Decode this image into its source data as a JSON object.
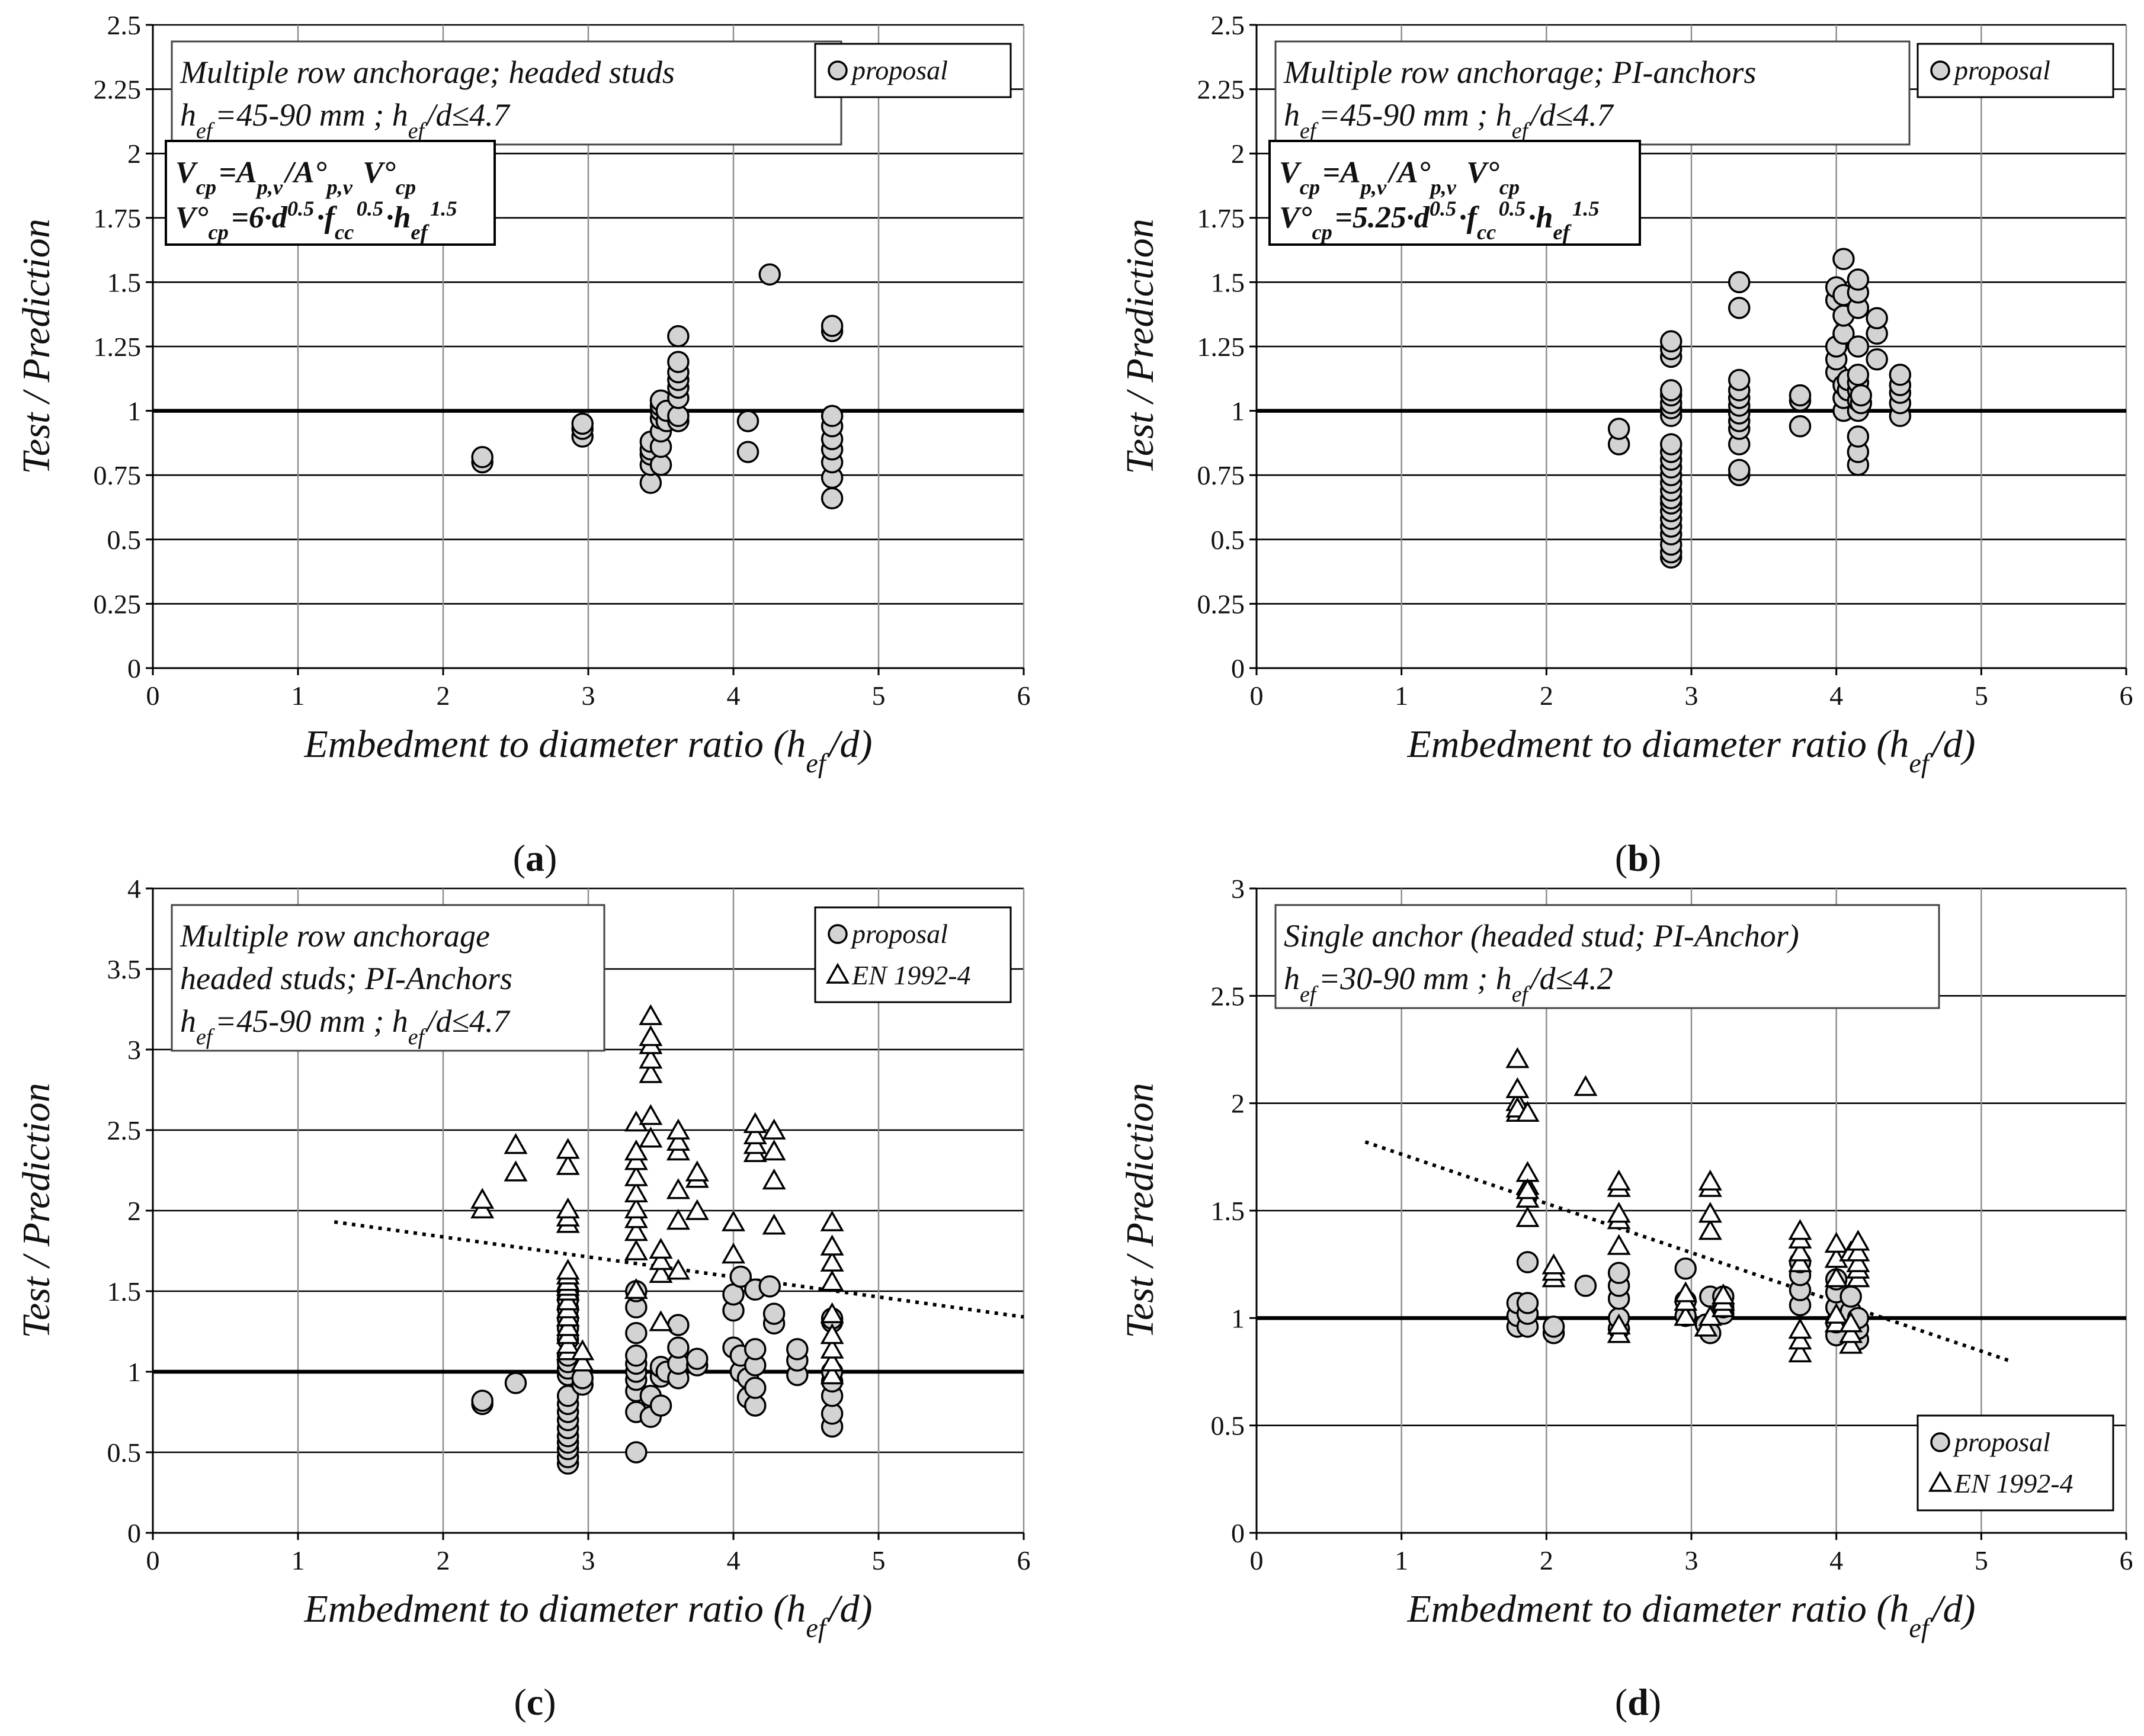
{
  "chart_data": [
    {
      "id": "a",
      "type": "scatter",
      "panel_label": "a",
      "xlabel": "Embedment to diameter ratio (h_ef/d)",
      "ylabel": "Test / Prediction",
      "xlim": [
        0,
        6
      ],
      "xticks": [
        0,
        1,
        2,
        3,
        4,
        5,
        6
      ],
      "ylim": [
        0,
        2.5
      ],
      "yticks": [
        0,
        0.25,
        0.5,
        0.75,
        1,
        1.25,
        1.5,
        1.75,
        2,
        2.25,
        2.5
      ],
      "ytick_labels": [
        "0",
        "0.25",
        "0.5",
        "0.75",
        "1",
        "1.25",
        "1.5",
        "1.75",
        "2",
        "2.25",
        "2.5"
      ],
      "grid": true,
      "reference_line": 1,
      "annotation": {
        "line1": "Multiple row anchorage; headed studs",
        "line2": "h_ef=45-90 mm ; h_ef/d≤4.7"
      },
      "formula": {
        "line1": "V_cp=A_p,v/A°_p,v V°_cp",
        "line2": "V°_cp=6·d^0.5·f_cc^0.5·h_ef^1.5"
      },
      "legend": [
        "proposal"
      ],
      "legend_position": "top-right",
      "series": [
        {
          "name": "proposal",
          "marker": "circle",
          "x": [
            2.27,
            2.27,
            2.96,
            2.96,
            2.96,
            3.43,
            3.43,
            3.43,
            3.43,
            3.43,
            3.5,
            3.5,
            3.5,
            3.5,
            3.5,
            3.5,
            3.5,
            3.54,
            3.54,
            3.62,
            3.62,
            3.62,
            3.62,
            3.62,
            3.62,
            3.62,
            3.62,
            4.1,
            4.1,
            4.25,
            4.68,
            4.68,
            4.68,
            4.68,
            4.68,
            4.68,
            4.68,
            4.68,
            4.68
          ],
          "y": [
            0.8,
            0.82,
            0.9,
            0.93,
            0.95,
            0.72,
            0.79,
            0.83,
            0.85,
            0.88,
            0.79,
            0.86,
            0.92,
            0.97,
            1.0,
            1.02,
            1.04,
            0.96,
            1.0,
            0.96,
            0.98,
            1.05,
            1.09,
            1.12,
            1.15,
            1.19,
            1.29,
            0.84,
            0.96,
            1.53,
            0.66,
            0.74,
            0.8,
            0.85,
            0.89,
            0.94,
            0.98,
            1.31,
            1.33
          ]
        }
      ]
    },
    {
      "id": "b",
      "type": "scatter",
      "panel_label": "b",
      "xlabel": "Embedment to diameter ratio (h_ef/d)",
      "ylabel": "Test / Prediction",
      "xlim": [
        0,
        6
      ],
      "xticks": [
        0,
        1,
        2,
        3,
        4,
        5,
        6
      ],
      "ylim": [
        0,
        2.5
      ],
      "yticks": [
        0,
        0.25,
        0.5,
        0.75,
        1,
        1.25,
        1.5,
        1.75,
        2,
        2.25,
        2.5
      ],
      "ytick_labels": [
        "0",
        "0.25",
        "0.5",
        "0.75",
        "1",
        "1.25",
        "1.5",
        "1.75",
        "2",
        "2.25",
        "2.5"
      ],
      "grid": true,
      "reference_line": 1,
      "annotation": {
        "line1": "Multiple row anchorage; PI-anchors",
        "line2": "h_ef=45-90 mm ; h_ef/d≤4.7"
      },
      "formula": {
        "line1": "V_cp=A_p,v/A°_p,v V°_cp",
        "line2": "V°_cp=5.25·d^0.5·f_cc^0.5·h_ef^1.5"
      },
      "legend": [
        "proposal"
      ],
      "legend_position": "top-right",
      "series": [
        {
          "name": "proposal",
          "marker": "circle",
          "x": [
            2.5,
            2.5,
            2.86,
            2.86,
            2.86,
            2.86,
            2.86,
            2.86,
            2.86,
            2.86,
            2.86,
            2.86,
            2.86,
            2.86,
            2.86,
            2.86,
            2.86,
            2.86,
            2.86,
            2.86,
            2.86,
            2.86,
            2.86,
            2.86,
            2.86,
            2.86,
            3.33,
            3.33,
            3.33,
            3.33,
            3.33,
            3.33,
            3.33,
            3.33,
            3.33,
            3.33,
            3.33,
            3.33,
            3.75,
            3.75,
            3.75,
            4.0,
            4.0,
            4.0,
            4.0,
            4.0,
            4.05,
            4.05,
            4.05,
            4.05,
            4.05,
            4.05,
            4.05,
            4.08,
            4.08,
            4.15,
            4.15,
            4.15,
            4.15,
            4.15,
            4.15,
            4.15,
            4.15,
            4.15,
            4.15,
            4.15,
            4.15,
            4.17,
            4.17,
            4.28,
            4.28,
            4.28,
            4.44,
            4.44,
            4.44,
            4.44,
            4.44
          ],
          "y": [
            0.87,
            0.93,
            0.43,
            0.45,
            0.48,
            0.52,
            0.55,
            0.58,
            0.61,
            0.64,
            0.66,
            0.69,
            0.72,
            0.75,
            0.78,
            0.81,
            0.84,
            0.87,
            0.98,
            1.01,
            1.03,
            1.06,
            1.08,
            1.21,
            1.24,
            1.27,
            0.75,
            0.77,
            0.87,
            0.93,
            0.96,
            0.99,
            1.02,
            1.05,
            1.08,
            1.12,
            1.4,
            1.5,
            0.94,
            1.04,
            1.06,
            1.15,
            1.2,
            1.25,
            1.43,
            1.48,
            1.0,
            1.05,
            1.1,
            1.3,
            1.37,
            1.45,
            1.59,
            1.08,
            1.12,
            0.79,
            0.84,
            0.9,
            1.0,
            1.04,
            1.08,
            1.11,
            1.14,
            1.25,
            1.4,
            1.46,
            1.51,
            1.03,
            1.06,
            1.2,
            1.3,
            1.36,
            0.98,
            1.03,
            1.07,
            1.1,
            1.14
          ]
        }
      ]
    },
    {
      "id": "c",
      "type": "scatter",
      "panel_label": "c",
      "xlabel": "Embedment to diameter ratio (h_ef/d)",
      "ylabel": "Test / Prediction",
      "xlim": [
        0,
        6
      ],
      "xticks": [
        0,
        1,
        2,
        3,
        4,
        5,
        6
      ],
      "ylim": [
        0,
        4
      ],
      "yticks": [
        0,
        0.5,
        1,
        1.5,
        2,
        2.5,
        3,
        3.5,
        4
      ],
      "ytick_labels": [
        "0",
        "0.5",
        "1",
        "1.5",
        "2",
        "2.5",
        "3",
        "3.5",
        "4"
      ],
      "grid": true,
      "reference_line": 1,
      "annotation": {
        "line1": "Multiple row anchorage",
        "line2": "headed studs; PI-Anchors",
        "line3": "h_ef=45-90 mm ; h_ef/d≤4.7"
      },
      "legend": [
        "proposal",
        "EN 1992-4"
      ],
      "legend_position": "top-right",
      "trendline": {
        "series": "EN 1992-4",
        "x": [
          1.25,
          6.0
        ],
        "y": [
          1.93,
          1.34
        ]
      },
      "series": [
        {
          "name": "proposal",
          "marker": "circle",
          "x": [
            2.27,
            2.27,
            2.5,
            2.86,
            2.86,
            2.86,
            2.86,
            2.86,
            2.86,
            2.86,
            2.86,
            2.86,
            2.86,
            2.86,
            2.86,
            2.86,
            2.86,
            2.86,
            2.86,
            2.86,
            2.86,
            2.86,
            2.86,
            2.96,
            2.96,
            3.33,
            3.33,
            3.33,
            3.33,
            3.33,
            3.33,
            3.33,
            3.33,
            3.33,
            3.33,
            3.43,
            3.43,
            3.5,
            3.5,
            3.5,
            3.54,
            3.62,
            3.62,
            3.62,
            3.62,
            3.75,
            3.75,
            4.0,
            4.0,
            4.0,
            4.05,
            4.05,
            4.05,
            4.1,
            4.1,
            4.15,
            4.15,
            4.15,
            4.15,
            4.15,
            4.25,
            4.28,
            4.28,
            4.44,
            4.44,
            4.44,
            4.68,
            4.68,
            4.68,
            4.68,
            4.68,
            4.68,
            4.68
          ],
          "y": [
            0.8,
            0.82,
            0.93,
            0.43,
            0.47,
            0.52,
            0.56,
            0.6,
            0.65,
            0.7,
            0.75,
            0.8,
            0.85,
            0.98,
            1.02,
            1.06,
            1.1,
            1.2,
            1.27,
            1.33,
            1.39,
            1.45,
            1.5,
            0.92,
            0.96,
            0.5,
            0.75,
            0.88,
            0.95,
            1.0,
            1.05,
            1.1,
            1.24,
            1.4,
            1.5,
            0.72,
            0.85,
            0.79,
            0.97,
            1.03,
            1.0,
            0.96,
            1.05,
            1.15,
            1.29,
            1.04,
            1.08,
            1.15,
            1.38,
            1.48,
            1.0,
            1.1,
            1.59,
            0.84,
            0.96,
            0.79,
            0.9,
            1.04,
            1.14,
            1.51,
            1.53,
            1.3,
            1.36,
            0.98,
            1.07,
            1.14,
            0.66,
            0.74,
            0.85,
            0.94,
            1.0,
            1.31,
            1.33
          ]
        },
        {
          "name": "EN 1992-4",
          "marker": "triangle",
          "x": [
            2.27,
            2.27,
            2.5,
            2.5,
            2.86,
            2.86,
            2.86,
            2.86,
            2.86,
            2.86,
            2.86,
            2.86,
            2.86,
            2.86,
            2.86,
            2.86,
            2.86,
            2.86,
            2.86,
            2.86,
            2.86,
            2.96,
            2.96,
            3.33,
            3.33,
            3.33,
            3.33,
            3.33,
            3.33,
            3.33,
            3.33,
            3.33,
            3.33,
            3.43,
            3.43,
            3.43,
            3.43,
            3.43,
            3.43,
            3.43,
            3.5,
            3.5,
            3.5,
            3.5,
            3.62,
            3.62,
            3.62,
            3.62,
            3.62,
            3.62,
            3.75,
            3.75,
            3.75,
            4.0,
            4.0,
            4.15,
            4.15,
            4.15,
            4.15,
            4.28,
            4.28,
            4.28,
            4.28,
            4.68,
            4.68,
            4.68,
            4.68,
            4.68,
            4.68,
            4.68,
            4.68,
            4.68
          ],
          "y": [
            2.0,
            2.06,
            2.23,
            2.4,
            1.91,
            1.95,
            2.0,
            2.27,
            2.37,
            1.12,
            1.16,
            1.22,
            1.27,
            1.33,
            1.38,
            1.43,
            1.49,
            1.52,
            1.55,
            1.59,
            1.62,
            1.05,
            1.12,
            1.5,
            1.74,
            1.86,
            1.94,
            2.0,
            2.1,
            2.2,
            2.3,
            2.36,
            2.54,
            2.44,
            2.58,
            2.84,
            2.93,
            3.02,
            3.07,
            3.2,
            1.3,
            1.6,
            1.68,
            1.75,
            1.62,
            1.93,
            2.12,
            2.36,
            2.42,
            2.49,
            1.99,
            2.19,
            2.23,
            1.72,
            1.92,
            2.35,
            2.4,
            2.46,
            2.53,
            1.9,
            2.18,
            2.36,
            2.49,
            0.97,
            1.05,
            1.13,
            1.22,
            1.35,
            1.55,
            1.67,
            1.77,
            1.92
          ]
        }
      ]
    },
    {
      "id": "d",
      "type": "scatter",
      "panel_label": "d",
      "xlabel": "Embedment to diameter ratio (h_ef/d)",
      "ylabel": "Test / Prediction",
      "xlim": [
        0,
        6
      ],
      "xticks": [
        0,
        1,
        2,
        3,
        4,
        5,
        6
      ],
      "ylim": [
        0,
        3
      ],
      "yticks": [
        0,
        0.5,
        1,
        1.5,
        2,
        2.5,
        3
      ],
      "ytick_labels": [
        "0",
        "0.5",
        "1",
        "1.5",
        "2",
        "2.5",
        "3"
      ],
      "grid": true,
      "reference_line": 1,
      "annotation": {
        "line1": "Single anchor (headed stud; PI-Anchor)",
        "line2": "h_ef=30-90 mm ; h_ef/d≤4.2"
      },
      "legend": [
        "proposal",
        "EN 1992-4"
      ],
      "legend_position": "bottom-right",
      "trendline": {
        "series": "EN 1992-4",
        "x": [
          0.75,
          5.2
        ],
        "y": [
          1.82,
          0.8
        ]
      },
      "series": [
        {
          "name": "proposal",
          "marker": "circle",
          "x": [
            1.8,
            1.8,
            1.8,
            1.87,
            1.87,
            1.87,
            1.87,
            2.05,
            2.05,
            2.27,
            2.5,
            2.5,
            2.5,
            2.5,
            2.5,
            2.96,
            2.96,
            2.96,
            3.1,
            3.13,
            3.13,
            3.22,
            3.22,
            3.22,
            3.75,
            3.75,
            3.75,
            3.75,
            4.0,
            4.0,
            4.0,
            4.0,
            4.0,
            4.1,
            4.1,
            4.15,
            4.15,
            4.15
          ],
          "y": [
            0.96,
            1.01,
            1.07,
            0.96,
            1.02,
            1.07,
            1.26,
            0.93,
            0.96,
            1.15,
            0.95,
            1.0,
            1.09,
            1.15,
            1.21,
            1.01,
            1.08,
            1.23,
            0.97,
            0.93,
            1.1,
            1.02,
            1.05,
            1.1,
            1.06,
            1.13,
            1.2,
            1.26,
            0.92,
            0.98,
            1.05,
            1.12,
            1.18,
            1.03,
            1.1,
            0.9,
            0.95,
            1.0
          ]
        },
        {
          "name": "EN 1992-4",
          "marker": "triangle",
          "x": [
            1.8,
            1.8,
            1.8,
            1.8,
            1.8,
            1.87,
            1.87,
            1.87,
            1.87,
            1.87,
            1.87,
            2.05,
            2.05,
            2.05,
            2.27,
            2.5,
            2.5,
            2.5,
            2.5,
            2.5,
            2.5,
            2.5,
            2.96,
            2.96,
            2.96,
            3.1,
            3.13,
            3.13,
            3.13,
            3.13,
            3.13,
            3.22,
            3.22,
            3.22,
            3.75,
            3.75,
            3.75,
            3.75,
            3.75,
            3.75,
            3.75,
            4.0,
            4.0,
            4.0,
            4.0,
            4.0,
            4.1,
            4.1,
            4.1,
            4.1,
            4.15,
            4.15,
            4.15,
            4.15,
            4.15
          ],
          "y": [
            1.95,
            2.0,
            2.06,
            2.2,
            1.97,
            1.46,
            1.55,
            1.61,
            1.67,
            1.59,
            1.95,
            1.18,
            1.21,
            1.24,
            2.07,
            0.92,
            0.96,
            1.33,
            1.45,
            1.48,
            1.6,
            1.63,
            1.0,
            1.07,
            1.11,
            0.95,
            1.0,
            1.4,
            1.48,
            1.6,
            1.63,
            1.04,
            1.07,
            1.1,
            0.83,
            0.89,
            0.94,
            1.25,
            1.3,
            1.36,
            1.4,
            0.97,
            1.01,
            1.18,
            1.27,
            1.34,
            0.87,
            0.92,
            0.97,
            1.3,
            1.18,
            1.22,
            1.25,
            1.3,
            1.35
          ]
        }
      ]
    }
  ]
}
